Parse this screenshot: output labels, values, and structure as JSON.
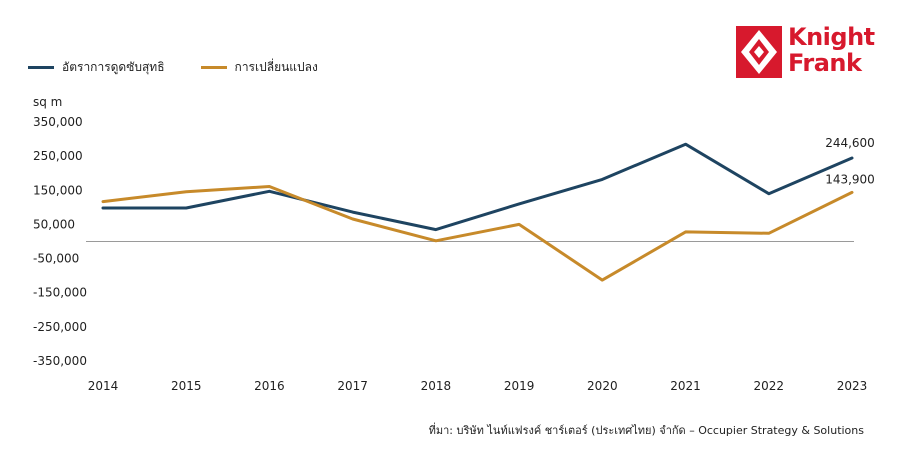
{
  "legend": {
    "series1_label": "อัตราการดูดซับสุทธิ",
    "series2_label": "การเปลี่ยนแปลง"
  },
  "logo": {
    "line1": "Knight",
    "line2": "Frank"
  },
  "colors": {
    "series1": "#1e4461",
    "series2": "#c78a2a",
    "brand": "#d7192d",
    "zero_line": "#9a9a9a"
  },
  "source": "ที่มา: บริษัท ไนท์แฟรงค์ ชาร์เตอร์ (ประเทศไทย) จำกัด – Occupier Strategy & Solutions",
  "chart_data": {
    "type": "line",
    "ylabel": "sq m",
    "x": [
      "2014",
      "2015",
      "2016",
      "2017",
      "2018",
      "2019",
      "2020",
      "2021",
      "2022",
      "2023"
    ],
    "ylim": [
      -350000,
      350000
    ],
    "yticks": [
      350000,
      250000,
      150000,
      50000,
      -50000,
      -150000,
      -250000,
      -350000
    ],
    "ytick_labels": [
      "350,000",
      "250,000",
      "150,000",
      "50,000",
      "-50,000",
      "-150,000",
      "-250,000",
      "-350,000"
    ],
    "grid": false,
    "zero_line": true,
    "legend_position": "top-left",
    "series": [
      {
        "name": "อัตราการดูดซับสุทธิ",
        "values": [
          98000,
          98000,
          147000,
          86000,
          35000,
          110000,
          182000,
          285000,
          140000,
          244600
        ]
      },
      {
        "name": "การเปลี่ยนแปลง",
        "values": [
          117000,
          146000,
          161000,
          66000,
          2000,
          50000,
          -113000,
          28000,
          24000,
          143900
        ]
      }
    ],
    "annotations": [
      {
        "series": 0,
        "index": 9,
        "text": "244,600"
      },
      {
        "series": 1,
        "index": 9,
        "text": "143,900"
      }
    ]
  }
}
